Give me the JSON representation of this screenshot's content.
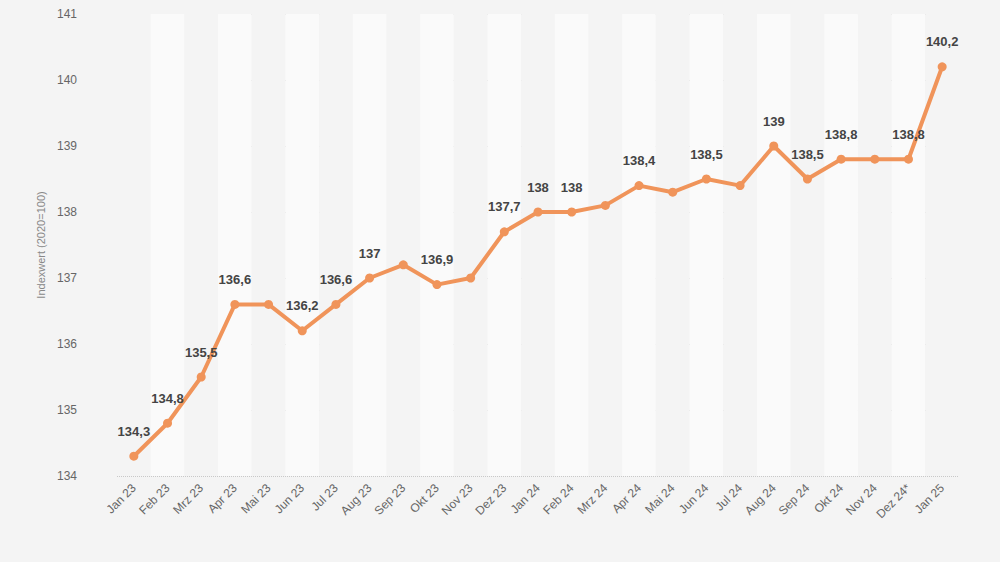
{
  "chart_data": {
    "type": "line",
    "y_label": "Indexwert (2020=100)",
    "categories": [
      "Jan 23",
      "Feb 23",
      "Mrz 23",
      "Apr 23",
      "Mai 23",
      "Jun 23",
      "Jul 23",
      "Aug 23",
      "Sep 23",
      "Okt 23",
      "Nov 23",
      "Dez 23",
      "Jan 24",
      "Feb 24",
      "Mrz 24",
      "Apr 24",
      "Mai 24",
      "Jun 24",
      "Jul 24",
      "Aug 24",
      "Sep 24",
      "Okt 24",
      "Nov 24",
      "Dez 24*",
      "Jan 25"
    ],
    "values": [
      134.3,
      134.8,
      135.5,
      136.6,
      136.6,
      136.2,
      136.6,
      137.0,
      137.2,
      136.9,
      137.0,
      137.7,
      138.0,
      138.0,
      138.1,
      138.4,
      138.3,
      138.5,
      138.4,
      139.0,
      138.5,
      138.8,
      138.8,
      138.8,
      140.2
    ],
    "value_labels": [
      "134,3",
      "134,8",
      "135,5",
      "136,6",
      null,
      "136,2",
      "136,6",
      "137",
      null,
      "136,9",
      null,
      "137,7",
      "138",
      "138",
      null,
      "138,4",
      null,
      "138,5",
      null,
      "139",
      "138,5",
      "138,8",
      null,
      "138,8",
      "140,2"
    ],
    "data_labels": true,
    "color": "#f0945a",
    "marker": "circle",
    "ylim": [
      134,
      141
    ],
    "yticks": [
      134,
      135,
      136,
      137,
      138,
      139,
      140,
      141
    ],
    "grid": true
  }
}
